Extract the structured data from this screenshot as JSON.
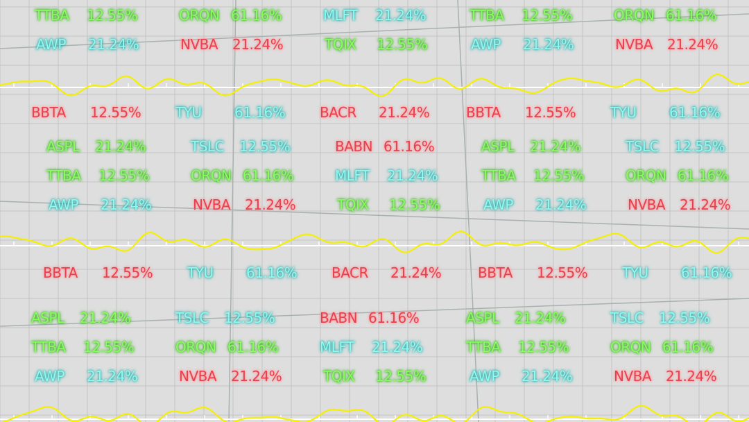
{
  "ticker_rows": [
    {
      "items": [
        {
          "symbol": "TTBA",
          "change": "12.55%",
          "color": "green"
        },
        {
          "symbol": "ORQN",
          "change": "61.16%",
          "color": "green"
        },
        {
          "symbol": "MLFT",
          "change": "21.24%",
          "color": "cyan"
        },
        {
          "symbol": "TTBA",
          "change": "12.55%",
          "color": "green"
        },
        {
          "symbol": "ORQN",
          "change": "61.16%",
          "color": "green"
        }
      ]
    },
    {
      "items": [
        {
          "symbol": "AWP",
          "change": "21.24%",
          "color": "cyan"
        },
        {
          "symbol": "NVBA",
          "change": "21.24%",
          "color": "red"
        },
        {
          "symbol": "TQIX",
          "change": "12.55%",
          "color": "green"
        },
        {
          "symbol": "AWP",
          "change": "21.24%",
          "color": "cyan"
        },
        {
          "symbol": "NVBA",
          "change": "21.24%",
          "color": "red"
        }
      ]
    },
    {
      "items": [
        {
          "symbol": "BBTA",
          "change": "12.55%",
          "color": "red"
        },
        {
          "symbol": "TYU",
          "change": "61.16%",
          "color": "cyan"
        },
        {
          "symbol": "BACR",
          "change": "21.24%",
          "color": "red"
        },
        {
          "symbol": "BBTA",
          "change": "12.55%",
          "color": "red"
        },
        {
          "symbol": "TYU",
          "change": "61.16%",
          "color": "cyan"
        }
      ]
    },
    {
      "items": [
        {
          "symbol": "ASPL",
          "change": "21.24%",
          "color": "green"
        },
        {
          "symbol": "TSLC",
          "change": "12.55%",
          "color": "cyan"
        },
        {
          "symbol": "BABN",
          "change": "61.16%",
          "color": "red"
        },
        {
          "symbol": "ASPL",
          "change": "21.24%",
          "color": "green"
        },
        {
          "symbol": "TSLC",
          "change": "12.55%",
          "color": "cyan"
        }
      ]
    },
    {
      "items": [
        {
          "symbol": "TTBA",
          "change": "12.55%",
          "color": "green"
        },
        {
          "symbol": "ORQN",
          "change": "61.16%",
          "color": "green"
        },
        {
          "symbol": "MLFT",
          "change": "21.24%",
          "color": "cyan"
        },
        {
          "symbol": "TTBA",
          "change": "12.55%",
          "color": "green"
        },
        {
          "symbol": "ORQN",
          "change": "61.16%",
          "color": "green"
        }
      ]
    },
    {
      "items": [
        {
          "symbol": "AWP",
          "change": "21.24%",
          "color": "cyan"
        },
        {
          "symbol": "NVBA",
          "change": "21.24%",
          "color": "red"
        },
        {
          "symbol": "TQIX",
          "change": "12.55%",
          "color": "green"
        },
        {
          "symbol": "AWP",
          "change": "21.24%",
          "color": "cyan"
        },
        {
          "symbol": "NVBA",
          "change": "21.24%",
          "color": "red"
        }
      ]
    },
    {
      "items": [
        {
          "symbol": "BBTA",
          "change": "12.55%",
          "color": "red"
        },
        {
          "symbol": "TYU",
          "change": "61.16%",
          "color": "cyan"
        },
        {
          "symbol": "BACR",
          "change": "21.24%",
          "color": "red"
        },
        {
          "symbol": "BBTA",
          "change": "12.55%",
          "color": "red"
        },
        {
          "symbol": "TYU",
          "change": "61.16%",
          "color": "cyan"
        }
      ]
    },
    {
      "items": [
        {
          "symbol": "ASPL",
          "change": "21.24%",
          "color": "green"
        },
        {
          "symbol": "TSLC",
          "change": "12.55%",
          "color": "cyan"
        },
        {
          "symbol": "BABN",
          "change": "61.16%",
          "color": "red"
        },
        {
          "symbol": "ASPL",
          "change": "21.24%",
          "color": "green"
        },
        {
          "symbol": "TSLC",
          "change": "12.55%",
          "color": "cyan"
        }
      ]
    },
    {
      "items": [
        {
          "symbol": "TTBA",
          "change": "12.55%",
          "color": "green"
        },
        {
          "symbol": "ORQN",
          "change": "61.16%",
          "color": "green"
        },
        {
          "symbol": "MLFT",
          "change": "21.24%",
          "color": "cyan"
        },
        {
          "symbol": "TTBA",
          "change": "12.55%",
          "color": "green"
        },
        {
          "symbol": "ORQN",
          "change": "61.16%",
          "color": "green"
        }
      ]
    },
    {
      "items": [
        {
          "symbol": "AWP",
          "change": "21.24%",
          "color": "cyan"
        },
        {
          "symbol": "NVBA",
          "change": "21.24%",
          "color": "red"
        },
        {
          "symbol": "TQIX",
          "change": "12.55%",
          "color": "green"
        },
        {
          "symbol": "AWP",
          "change": "21.24%",
          "color": "cyan"
        },
        {
          "symbol": "NVBA",
          "change": "21.24%",
          "color": "red"
        }
      ]
    }
  ]
}
